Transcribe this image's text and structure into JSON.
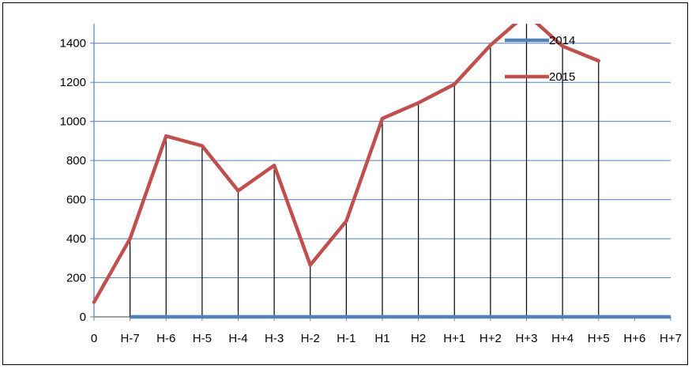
{
  "chart_data": {
    "type": "line",
    "categories": [
      "0",
      "H-7",
      "H-6",
      "H-5",
      "H-4",
      "H-3",
      "H-2",
      "H-1",
      "H1",
      "H2",
      "H+1",
      "H+2",
      "H+3",
      "H+4",
      "H+5",
      "H+6",
      "H+7"
    ],
    "ylim": [
      0,
      1500
    ],
    "yticks": [
      0,
      200,
      400,
      600,
      800,
      1000,
      1200,
      1400
    ],
    "grid": true,
    "legend_position": "top-right",
    "series": [
      {
        "name": "2014",
        "color": "#4f81bd",
        "values": [
          0,
          0,
          0,
          0,
          0,
          0,
          0,
          0,
          0,
          0,
          0,
          0,
          0,
          0,
          0,
          0,
          0
        ]
      },
      {
        "name": "2015",
        "color": "#c0504d",
        "values": [
          75,
          400,
          925,
          875,
          645,
          775,
          265,
          490,
          1015,
          1095,
          1190,
          1390,
          1550,
          1385,
          1310,
          null,
          null
        ]
      }
    ],
    "drop_lines_color": "#000000"
  }
}
